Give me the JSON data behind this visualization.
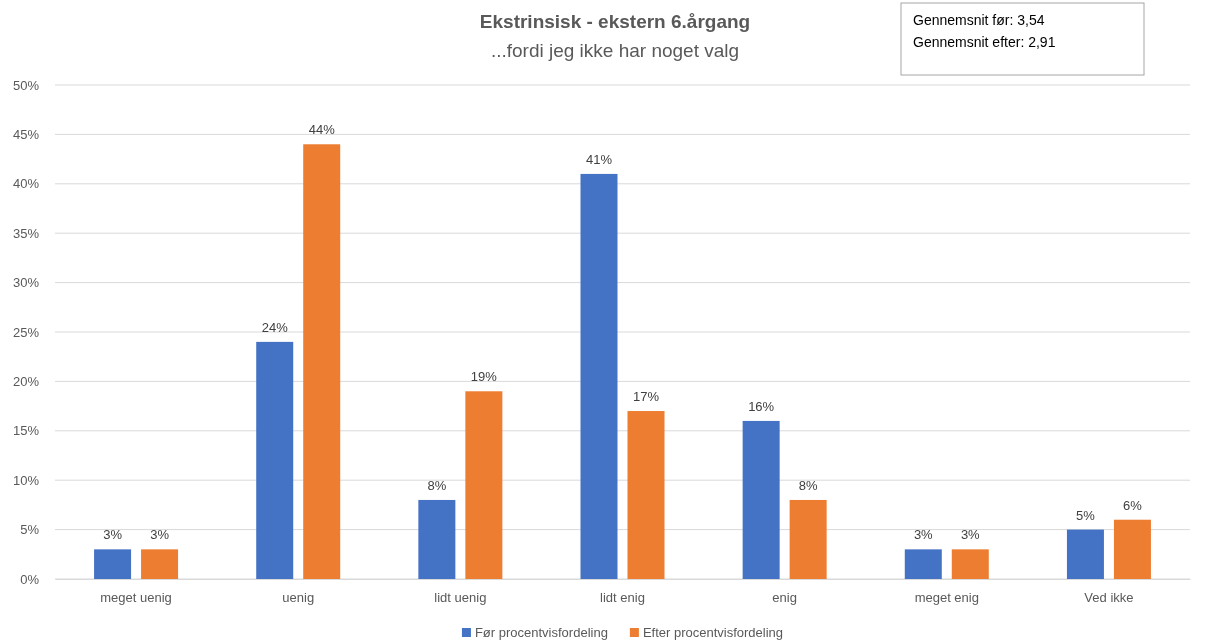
{
  "chart_data": {
    "type": "bar",
    "title": "Ekstrinsisk - ekstern 6.årgang",
    "subtitle": "...fordi jeg ikke har noget valg",
    "annotations": [
      "Gennemsnit før: 3,54",
      "Gennemsnit efter: 2,91"
    ],
    "categories": [
      "meget uenig",
      "uenig",
      "lidt uenig",
      "lidt enig",
      "enig",
      "meget enig",
      "Ved ikke"
    ],
    "series": [
      {
        "name": "Før procentvisfordeling",
        "color": "#4472c4",
        "values": [
          3,
          24,
          8,
          41,
          16,
          3,
          5
        ],
        "value_labels": [
          "3%",
          "24%",
          "8%",
          "41%",
          "16%",
          "3%",
          "5%"
        ]
      },
      {
        "name": "Efter procentvisfordeling",
        "color": "#ed7d31",
        "values": [
          3,
          44,
          19,
          17,
          8,
          3,
          6
        ],
        "value_labels": [
          "3%",
          "44%",
          "19%",
          "17%",
          "8%",
          "3%",
          "6%"
        ]
      }
    ],
    "ylim": [
      0,
      50
    ],
    "yticks": [
      {
        "value": 0,
        "label": "0%"
      },
      {
        "value": 5,
        "label": "5%"
      },
      {
        "value": 10,
        "label": "10%"
      },
      {
        "value": 15,
        "label": "15%"
      },
      {
        "value": 20,
        "label": "20%"
      },
      {
        "value": 25,
        "label": "25%"
      },
      {
        "value": 30,
        "label": "30%"
      },
      {
        "value": 35,
        "label": "35%"
      },
      {
        "value": 40,
        "label": "40%"
      },
      {
        "value": 45,
        "label": "45%"
      },
      {
        "value": 50,
        "label": "50%"
      }
    ],
    "grid": "y",
    "legend": "bottom"
  }
}
